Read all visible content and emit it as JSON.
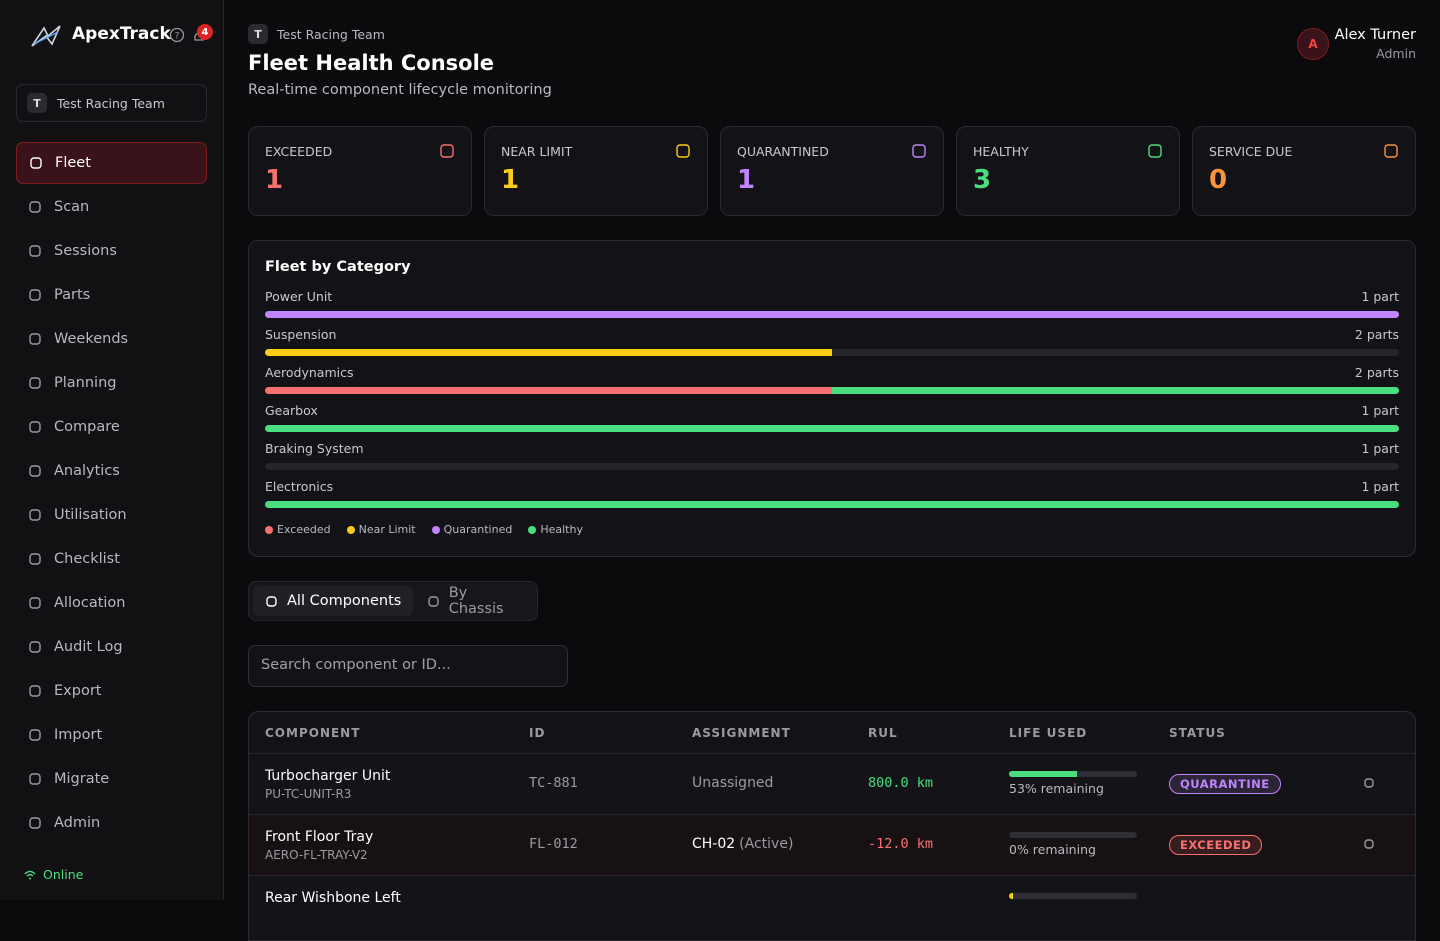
{
  "sidebar": {
    "brand": "ApexTrack",
    "notifications": 4,
    "team_initial": "T",
    "team": "Test Racing Team",
    "nav": [
      "Fleet",
      "Scan",
      "Sessions",
      "Parts",
      "Weekends",
      "Planning",
      "Compare",
      "Analytics",
      "Utilisation",
      "Checklist",
      "Allocation",
      "Audit Log",
      "Export",
      "Import",
      "Migrate",
      "Admin"
    ],
    "active": 0,
    "status": "Online"
  },
  "header": {
    "team_initial": "T",
    "team": "Test Racing Team",
    "title": "Fleet Health Console",
    "subtitle": "Real-time component lifecycle monitoring",
    "user_initial": "A",
    "user_name": "Alex Turner",
    "user_role": "Admin"
  },
  "stats": [
    {
      "label": "EXCEEDED",
      "value": 1,
      "color": "#f87171"
    },
    {
      "label": "NEAR LIMIT",
      "value": 1,
      "color": "#facc15"
    },
    {
      "label": "QUARANTINED",
      "value": 1,
      "color": "#c084fc"
    },
    {
      "label": "HEALTHY",
      "value": 3,
      "color": "#4ade80"
    },
    {
      "label": "SERVICE DUE",
      "value": 0,
      "color": "#fb923c"
    }
  ],
  "fleet": {
    "title": "Fleet by Category",
    "legend": [
      {
        "name": "Exceeded",
        "color": "#f87171"
      },
      {
        "name": "Near Limit",
        "color": "#facc15"
      },
      {
        "name": "Quarantined",
        "color": "#c084fc"
      },
      {
        "name": "Healthy",
        "color": "#4ade80"
      }
    ],
    "categories": [
      {
        "name": "Power Unit",
        "parts": 1,
        "parts_label": "1 part",
        "counts": [
          0,
          0,
          1,
          0
        ]
      },
      {
        "name": "Suspension",
        "parts": 2,
        "parts_label": "2 parts",
        "counts": [
          0,
          1,
          0,
          0
        ]
      },
      {
        "name": "Aerodynamics",
        "parts": 2,
        "parts_label": "2 parts",
        "counts": [
          1,
          0,
          0,
          1
        ]
      },
      {
        "name": "Gearbox",
        "parts": 1,
        "parts_label": "1 part",
        "counts": [
          0,
          0,
          0,
          1
        ]
      },
      {
        "name": "Braking System",
        "parts": 1,
        "parts_label": "1 part",
        "counts": [
          0,
          0,
          0,
          0
        ]
      },
      {
        "name": "Electronics",
        "parts": 1,
        "parts_label": "1 part",
        "counts": [
          0,
          0,
          0,
          1
        ]
      }
    ]
  },
  "tabs": [
    "All Components",
    "By Chassis"
  ],
  "search_placeholder": "Search component or ID...",
  "table": {
    "columns": [
      "COMPONENT",
      "ID",
      "ASSIGNMENT",
      "RUL",
      "LIFE USED",
      "STATUS"
    ],
    "rows": [
      {
        "component": "Turbocharger Unit",
        "code": "PU-TC-UNIT-R3",
        "id": "TC-881",
        "assignment": "Unassigned",
        "rul": "800.0 km",
        "rul_color": "#4ade80",
        "life_remaining": 53,
        "life_label": "53% remaining",
        "life_color": "#4ade80",
        "status": "QUARANTINE",
        "status_color": "#c084fc"
      },
      {
        "component": "Front Floor Tray",
        "code": "AERO-FL-TRAY-V2",
        "id": "FL-012",
        "assignment": "CH-02",
        "assignment_note": "(Active)",
        "rul": "-12.0 km",
        "rul_color": "#f87171",
        "life_remaining": 0,
        "life_label": "0% remaining",
        "life_color": "#f87171",
        "status": "EXCEEDED",
        "status_color": "#f87171"
      },
      {
        "component": "Rear Wishbone Left",
        "life_remaining": 3,
        "life_color": "#facc15"
      }
    ]
  }
}
